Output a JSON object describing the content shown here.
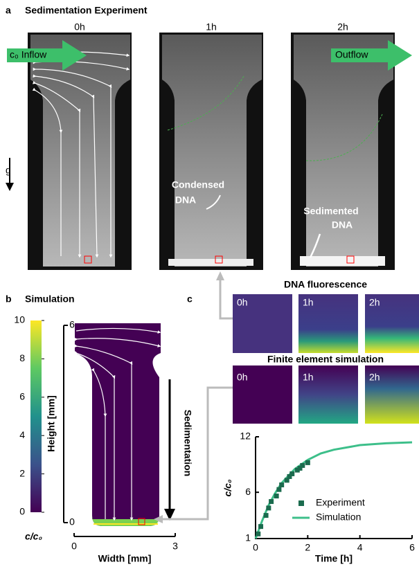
{
  "panel_a": {
    "label": "a",
    "title": "Sedimentation Experiment",
    "times": [
      "0h",
      "1h",
      "2h"
    ],
    "inflow": "c₀ Inflow",
    "outflow": "Outflow",
    "gravity": "g",
    "condensed": [
      "Condensed",
      "DNA"
    ],
    "sedimented": [
      "Sedimented",
      "DNA"
    ]
  },
  "panel_b": {
    "label": "b",
    "title": "Simulation",
    "colorbar": {
      "label": "c/c₀",
      "lim": [
        0,
        10
      ],
      "ticks": [
        0,
        2,
        4,
        6,
        8,
        10
      ]
    },
    "ylabel": "Height [mm]",
    "ylim": [
      0,
      6
    ],
    "yticks": [
      0,
      6
    ],
    "xlabel": "Width [mm]",
    "xlim": [
      0,
      3
    ],
    "xticks": [
      0,
      3
    ],
    "arrow_label": "Sedimentation"
  },
  "panel_c": {
    "label": "c",
    "fluorescence": {
      "title": "DNA fluorescence",
      "times": [
        "0h",
        "1h",
        "2h"
      ]
    },
    "simulation": {
      "title": "Finite element simulation",
      "times": [
        "0h",
        "1h",
        "2h"
      ]
    }
  },
  "chart_data": {
    "type": "line",
    "xlabel": "Time [h]",
    "ylabel": "c/c₀",
    "xlim": [
      0,
      6
    ],
    "ylim": [
      1,
      12
    ],
    "xticks": [
      0,
      2,
      4,
      6
    ],
    "yticks": [
      1,
      6,
      12
    ],
    "series": [
      {
        "name": "Experiment",
        "color": "#1b6b4e",
        "marker": "square",
        "x": [
          0.1,
          0.2,
          0.4,
          0.5,
          0.6,
          0.8,
          0.9,
          1.0,
          1.2,
          1.3,
          1.4,
          1.6,
          1.7,
          1.8,
          2.0
        ],
        "values": [
          1.5,
          2.3,
          3.5,
          4.3,
          5.0,
          5.6,
          6.3,
          6.8,
          7.3,
          7.7,
          8.0,
          8.4,
          8.6,
          8.9,
          9.2
        ]
      },
      {
        "name": "Simulation",
        "color": "#3dbf8a",
        "x": [
          0,
          0.25,
          0.5,
          0.75,
          1,
          1.5,
          2,
          2.5,
          3,
          4,
          5,
          6
        ],
        "values": [
          1,
          2.9,
          4.6,
          5.9,
          7.0,
          8.5,
          9.5,
          10.2,
          10.6,
          11.1,
          11.3,
          11.4
        ]
      }
    ]
  }
}
